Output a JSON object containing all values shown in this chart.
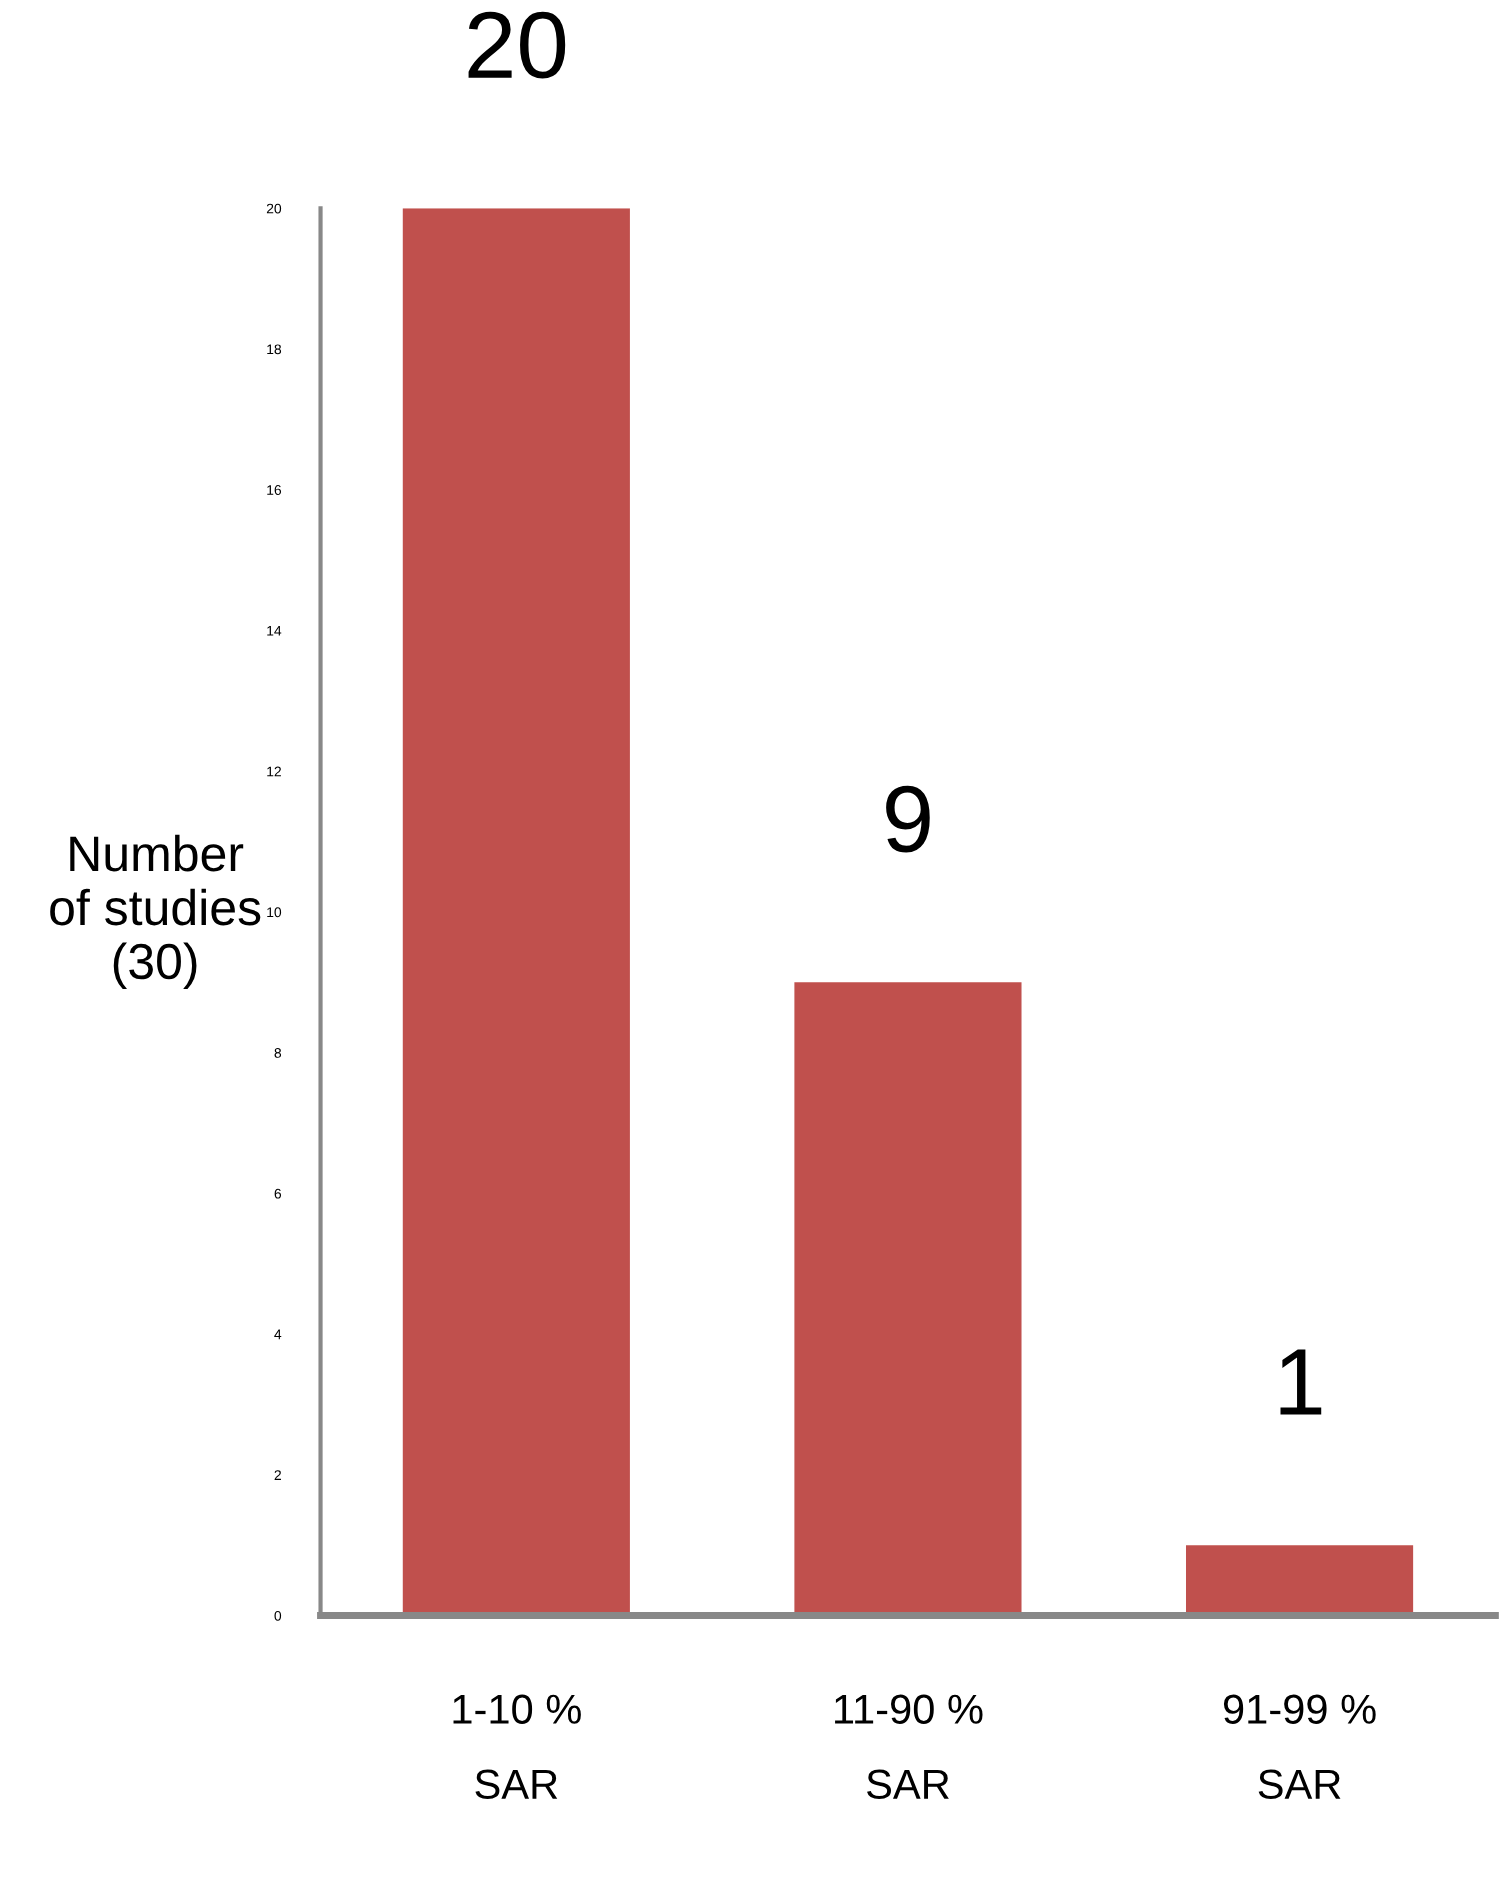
{
  "chart_data": {
    "type": "bar",
    "ylabel": "Number\nof studies\n(30)",
    "categories": [
      "1-10 %\nSAR",
      "11-90 %\nSAR",
      "91-99 %\nSAR"
    ],
    "values": [
      20,
      9,
      1
    ],
    "color": "#c0504d",
    "ylim": [
      0,
      20
    ],
    "yticks": [
      0,
      2,
      4,
      6,
      8,
      10,
      12,
      14,
      16,
      18,
      20
    ],
    "data_labels": true,
    "grid": false,
    "legend": false
  }
}
